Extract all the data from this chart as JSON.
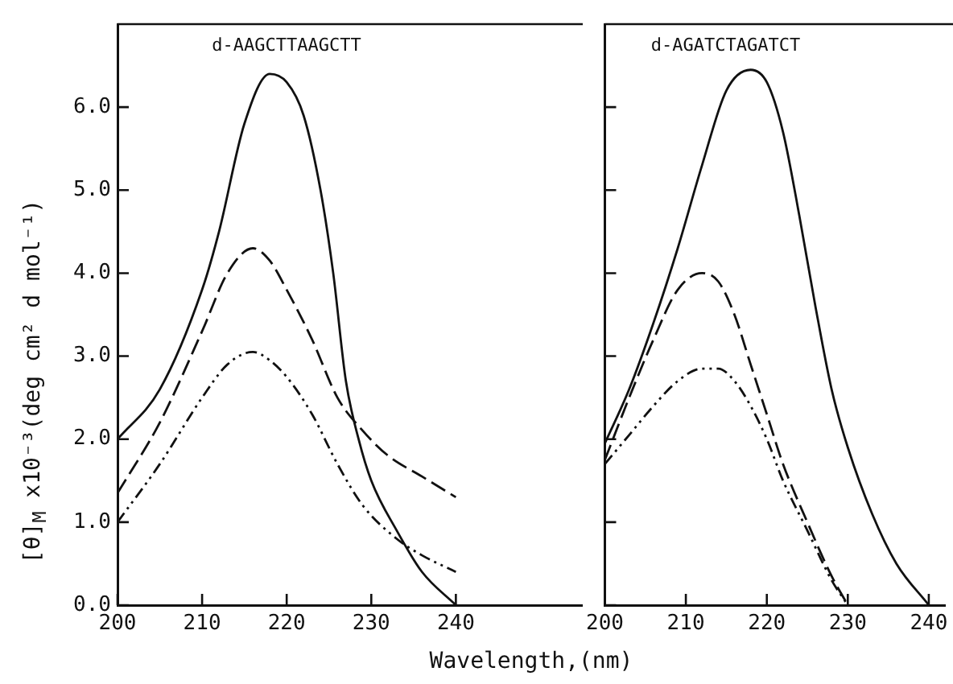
{
  "chart_data": [
    {
      "type": "line",
      "title": "d-AAGCTTAAGCTT",
      "xlabel": "Wavelength,(nm)",
      "ylabel": "[θ]$_{M}$ x10⁻³(deg  cm² d mol⁻¹)",
      "xlim": [
        200,
        255
      ],
      "xticks": [
        200,
        210,
        220,
        230,
        240
      ],
      "ylim": [
        0,
        7
      ],
      "yticks": [
        {
          "value": 0,
          "label": "0.0"
        },
        {
          "value": 1,
          "label": "1.0"
        },
        {
          "value": 2,
          "label": "2.0"
        },
        {
          "value": 3,
          "label": "3.0"
        },
        {
          "value": 4,
          "label": "4.0"
        },
        {
          "value": 5,
          "label": "5.0"
        },
        {
          "value": 6,
          "label": "6.0"
        }
      ],
      "grid": false,
      "legend": false,
      "series": [
        {
          "color": "#111111",
          "line_style": "solid",
          "x": [
            200,
            205,
            210,
            212,
            215,
            218,
            220,
            222,
            224,
            225.5,
            227,
            228.5,
            230,
            233,
            236,
            240
          ],
          "values": [
            2.0,
            2.6,
            3.8,
            4.5,
            5.8,
            6.4,
            6.3,
            5.9,
            5.0,
            4.0,
            2.7,
            2.0,
            1.5,
            0.9,
            0.4,
            0.0
          ]
        },
        {
          "color": "#111111",
          "line_style": "dashed",
          "x": [
            200,
            205,
            210,
            213,
            216,
            218,
            220,
            223,
            226,
            229,
            232,
            236,
            240
          ],
          "values": [
            1.35,
            2.2,
            3.3,
            4.0,
            4.3,
            4.15,
            3.8,
            3.2,
            2.5,
            2.1,
            1.8,
            1.55,
            1.3
          ]
        },
        {
          "color": "#111111",
          "line_style": "dotted",
          "x": [
            200,
            205,
            210,
            213,
            216,
            218,
            220,
            223,
            226,
            229,
            233,
            236,
            240
          ],
          "values": [
            1.0,
            1.7,
            2.5,
            2.9,
            3.05,
            2.95,
            2.75,
            2.3,
            1.7,
            1.2,
            0.8,
            0.6,
            0.4
          ]
        }
      ]
    },
    {
      "type": "line",
      "title": "d-AGATCTAGATCT",
      "xlim": [
        200,
        242
      ],
      "xticks": [
        200,
        210,
        220,
        230,
        240
      ],
      "ylim": [
        0,
        7
      ],
      "yticks": [
        {
          "value": 0,
          "label": null
        },
        {
          "value": 1,
          "label": null
        },
        {
          "value": 2,
          "label": null
        },
        {
          "value": 3,
          "label": null
        },
        {
          "value": 4,
          "label": null
        },
        {
          "value": 5,
          "label": null
        },
        {
          "value": 6,
          "label": null
        }
      ],
      "tick_labels": "x",
      "grid": false,
      "legend": false,
      "series": [
        {
          "color": "#111111",
          "line_style": "solid",
          "x": [
            200,
            203,
            206,
            209,
            212,
            215,
            218,
            220,
            222,
            224,
            226,
            228,
            230,
            233,
            236,
            240
          ],
          "values": [
            1.95,
            2.6,
            3.4,
            4.3,
            5.3,
            6.2,
            6.45,
            6.3,
            5.7,
            4.7,
            3.6,
            2.6,
            1.9,
            1.1,
            0.5,
            0.0
          ]
        },
        {
          "color": "#111111",
          "line_style": "dashed",
          "x": [
            200,
            203,
            206,
            209,
            212,
            214,
            216,
            218,
            220,
            222,
            225,
            228,
            230
          ],
          "values": [
            1.75,
            2.5,
            3.2,
            3.8,
            4.0,
            3.9,
            3.5,
            2.9,
            2.3,
            1.7,
            1.0,
            0.35,
            0.0
          ]
        },
        {
          "color": "#111111",
          "line_style": "dotted",
          "x": [
            200,
            203,
            206,
            209,
            212,
            214,
            216,
            218,
            220,
            222,
            225,
            228,
            230
          ],
          "values": [
            1.7,
            2.05,
            2.4,
            2.7,
            2.85,
            2.85,
            2.7,
            2.4,
            2.0,
            1.5,
            0.9,
            0.3,
            0.0
          ]
        }
      ]
    }
  ]
}
